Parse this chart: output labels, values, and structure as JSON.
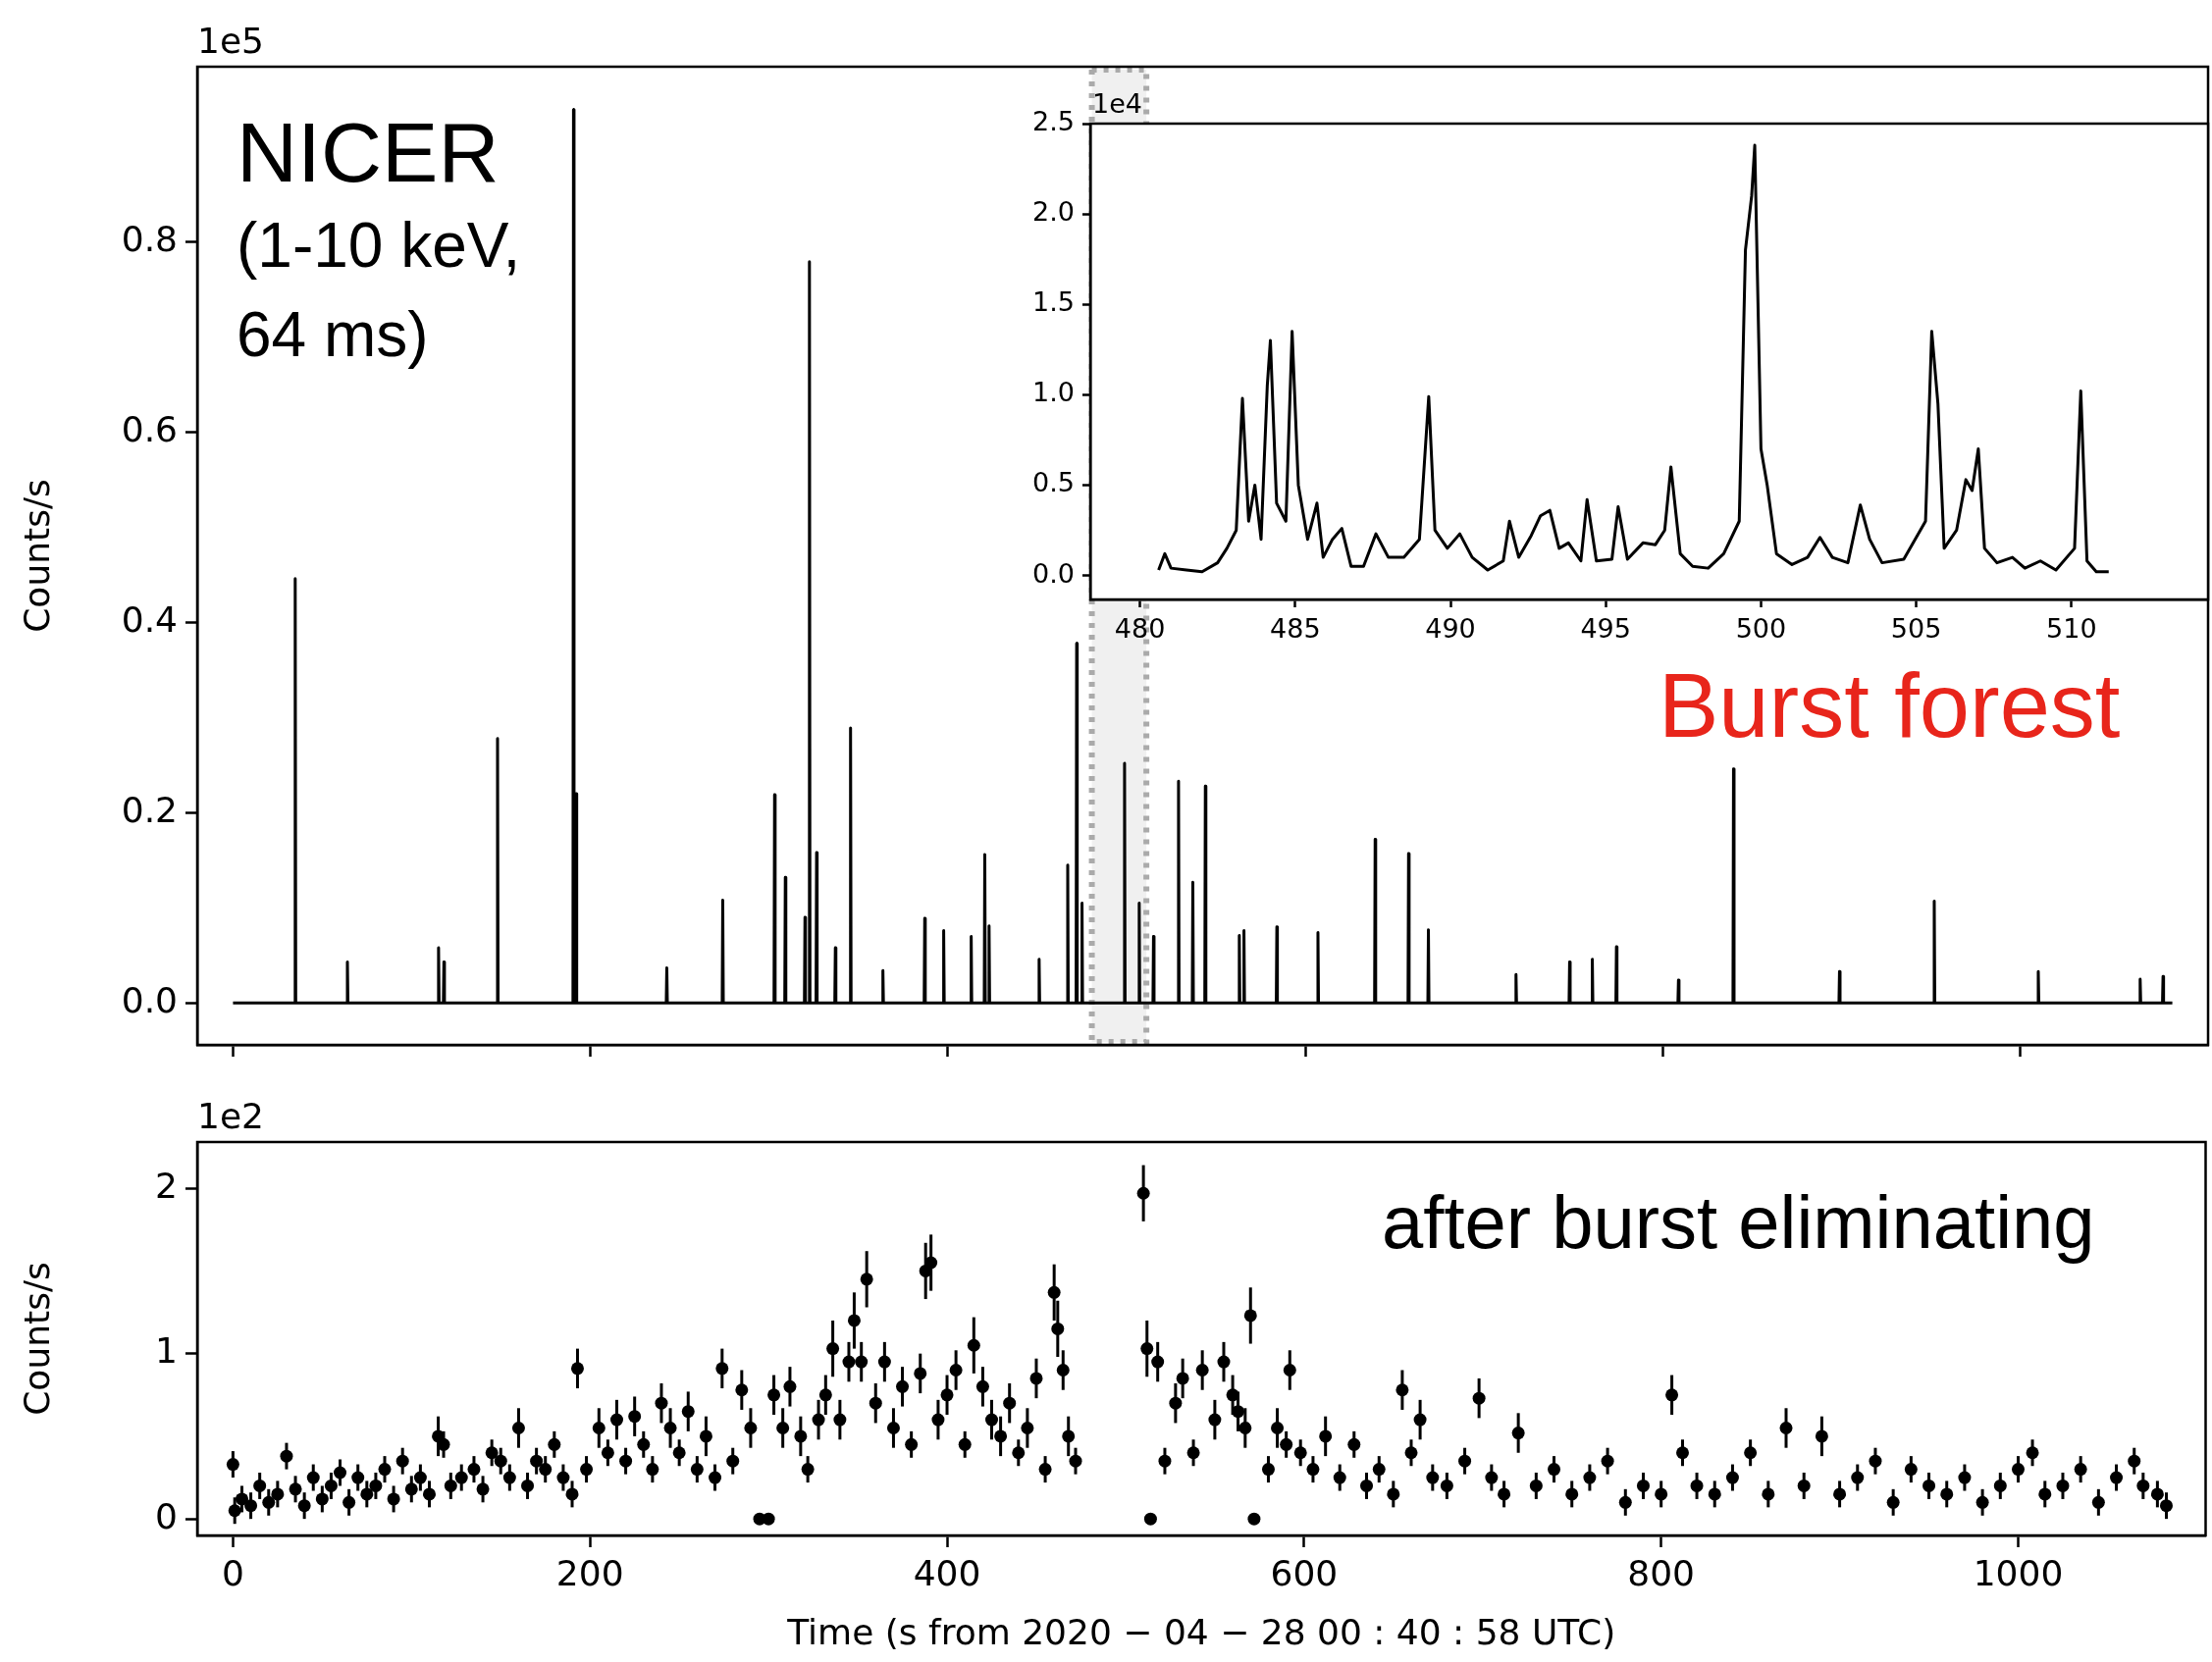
{
  "chart_data": [
    {
      "type": "line",
      "ylabel": "Counts/s",
      "annotations": [
        "1e5",
        "NICER",
        "(1-10 keV, 64 ms)",
        "Burst forest"
      ],
      "x": [
        0,
        34.5,
        34.8,
        35.1,
        63.7,
        64,
        64.3,
        114.7,
        115,
        115.3,
        117.7,
        118,
        118.3,
        147.7,
        148,
        148.3,
        190.2,
        190.5,
        190.8,
        191.7,
        192,
        192.3,
        242.4,
        242.7,
        243,
        273.7,
        274,
        274.3,
        302.7,
        303,
        303.3,
        308.7,
        309,
        309.3,
        319.7,
        320,
        320.3,
        322.2,
        322.5,
        322.8,
        326.2,
        326.5,
        326.8,
        336.7,
        337,
        337.3,
        345.2,
        345.5,
        345.8,
        363.3,
        363.6,
        363.9,
        386.7,
        387,
        387.3,
        397.3,
        397.6,
        397.9,
        412.7,
        413,
        413.3,
        420.3,
        420.6,
        420.9,
        422.7,
        423,
        423.3,
        450.7,
        451,
        451.3,
        466.7,
        467,
        467.3,
        471.7,
        472,
        472.3,
        474.7,
        475,
        475.3,
        498.5,
        498.8,
        499.1,
        506.7,
        507,
        507.3,
        514.7,
        515,
        515.3,
        528.7,
        529,
        529.3,
        536.7,
        537,
        537.3,
        543.7,
        544,
        544.3,
        562.7,
        563,
        563.3,
        565.3,
        565.6,
        565.9,
        583.7,
        584,
        584.3,
        606.7,
        607,
        607.3,
        638.7,
        639,
        639.3,
        657.4,
        657.7,
        658,
        668.5,
        668.8,
        669.1,
        717.5,
        717.8,
        718.1,
        747.5,
        747.8,
        748.1,
        760.2,
        760.5,
        760.8,
        773.7,
        774,
        774.3,
        808.4,
        808.7,
        809,
        839.2,
        839.5,
        839.8,
        898.5,
        898.8,
        899.1,
        951.5,
        951.8,
        952.1,
        1009.7,
        1010,
        1010.3,
        1066.7,
        1067,
        1067.3,
        1079.5,
        1079.8,
        1080.1,
        1085
      ],
      "values": [
        0,
        0,
        0.446,
        0,
        0,
        0.043,
        0,
        0,
        0.058,
        0,
        0,
        0.043,
        0,
        0,
        0.278,
        0,
        0,
        0.939,
        0,
        0,
        0.22,
        0,
        0,
        0.037,
        0,
        0,
        0.108,
        0,
        0,
        0.219,
        0,
        0,
        0.132,
        0,
        0,
        0.09,
        0,
        0,
        0.779,
        0,
        0,
        0.158,
        0,
        0,
        0.058,
        0,
        0,
        0.289,
        0,
        0,
        0.034,
        0,
        0,
        0.089,
        0,
        0,
        0.076,
        0,
        0,
        0.07,
        0,
        0,
        0.156,
        0,
        0,
        0.081,
        0,
        0,
        0.046,
        0,
        0,
        0.145,
        0,
        0,
        0.378,
        0,
        0,
        0.105,
        0,
        0,
        0.252,
        0,
        0,
        0.105,
        0,
        0,
        0.07,
        0,
        0,
        0.233,
        0,
        0,
        0.127,
        0,
        0,
        0.228,
        0,
        0,
        0.071,
        0,
        0,
        0.076,
        0,
        0,
        0.08,
        0,
        0,
        0.074,
        0,
        0,
        0.172,
        0,
        0,
        0.157,
        0,
        0,
        0.077,
        0,
        0,
        0.03,
        0,
        0,
        0.043,
        0,
        0,
        0.046,
        0,
        0,
        0.059,
        0,
        0,
        0.024,
        0,
        0,
        0.246,
        0,
        0,
        0.033,
        0,
        0,
        0.107,
        0,
        0,
        0.033,
        0,
        0,
        0.025,
        0,
        0,
        0.028,
        0,
        0
      ],
      "color": "#000000",
      "marker": "none",
      "line_style": "solid",
      "xlim": [
        -20,
        1105
      ],
      "xticks": [
        0,
        200,
        400,
        600,
        800,
        1000
      ],
      "ylim": [
        -0.044,
        0.984
      ],
      "yticks": [
        {
          "value": 0,
          "label": "0.0"
        },
        0.2,
        0.4,
        0.6,
        0.8
      ],
      "tick_labels": "y",
      "bands": [
        {
          "axis": "x",
          "from": 480.5,
          "to": 511,
          "color": "#aaaaaa"
        }
      ]
    },
    {
      "type": "line",
      "annotations": [
        "1e4"
      ],
      "x": [
        480.6,
        480.8,
        481,
        481.5,
        482,
        482.5,
        482.8,
        483.1,
        483.3,
        483.5,
        483.7,
        483.9,
        484.1,
        484.2,
        484.4,
        484.7,
        484.9,
        485.1,
        485.4,
        485.7,
        485.9,
        486.2,
        486.5,
        486.8,
        487.2,
        487.6,
        488,
        488.5,
        489,
        489.3,
        489.5,
        489.9,
        490.3,
        490.7,
        491.2,
        491.7,
        491.9,
        492.2,
        492.6,
        492.9,
        493.2,
        493.5,
        493.8,
        494.2,
        494.4,
        494.7,
        495.2,
        495.4,
        495.7,
        496.2,
        496.6,
        496.9,
        497.1,
        497.4,
        497.8,
        498.3,
        498.8,
        499.3,
        499.5,
        499.7,
        499.8,
        500,
        500.2,
        500.5,
        501,
        501.5,
        501.9,
        502.3,
        502.8,
        503.2,
        503.5,
        503.9,
        504.6,
        505.3,
        505.5,
        505.7,
        505.9,
        506.3,
        506.6,
        506.8,
        507,
        507.2,
        507.6,
        508.1,
        508.5,
        509,
        509.5,
        510.1,
        510.3,
        510.5,
        510.8,
        511.2
      ],
      "values": [
        0.03,
        0.12,
        0.04,
        0.03,
        0.02,
        0.07,
        0.15,
        0.25,
        0.98,
        0.3,
        0.5,
        0.2,
        1.05,
        1.3,
        0.4,
        0.3,
        1.35,
        0.5,
        0.2,
        0.4,
        0.1,
        0.2,
        0.26,
        0.05,
        0.05,
        0.23,
        0.1,
        0.1,
        0.2,
        0.99,
        0.25,
        0.15,
        0.23,
        0.1,
        0.03,
        0.08,
        0.3,
        0.1,
        0.22,
        0.33,
        0.36,
        0.15,
        0.18,
        0.08,
        0.42,
        0.08,
        0.09,
        0.38,
        0.09,
        0.18,
        0.17,
        0.25,
        0.6,
        0.12,
        0.05,
        0.04,
        0.12,
        0.3,
        1.8,
        2.1,
        2.38,
        0.7,
        0.5,
        0.12,
        0.06,
        0.1,
        0.21,
        0.1,
        0.07,
        0.39,
        0.2,
        0.07,
        0.09,
        0.3,
        1.35,
        0.95,
        0.15,
        0.25,
        0.53,
        0.47,
        0.7,
        0.15,
        0.07,
        0.1,
        0.04,
        0.08,
        0.03,
        0.15,
        1.02,
        0.08,
        0.02,
        0.02
      ],
      "color": "#000000",
      "marker": "none",
      "line_style": "solid",
      "xlim": [
        478.4,
        514.4
      ],
      "xticks": [
        480,
        485,
        490,
        495,
        500,
        505,
        510
      ],
      "ylim": [
        -0.133,
        2.5
      ],
      "yticks": [
        {
          "value": 0,
          "label": "0.0"
        },
        0.5,
        {
          "value": 1,
          "label": "1.0"
        },
        1.5,
        {
          "value": 2,
          "label": "2.0"
        },
        2.5
      ]
    },
    {
      "type": "scatter",
      "xlabel": "Time (s from 2020 − 04 − 28 00 : 40 : 58 UTC)",
      "ylabel": "Counts/s",
      "annotations": [
        "1e2",
        "after burst eliminating"
      ],
      "x": [
        0,
        1,
        5,
        10,
        15,
        20,
        25,
        30,
        35,
        40,
        45,
        50,
        55,
        60,
        65,
        70,
        75,
        80,
        85,
        90,
        95,
        100,
        105,
        110,
        115,
        118,
        122,
        128,
        135,
        140,
        145,
        150,
        155,
        160,
        165,
        170,
        175,
        180,
        185,
        190,
        193,
        198,
        205,
        210,
        215,
        220,
        225,
        230,
        235,
        240,
        245,
        250,
        255,
        260,
        265,
        270,
        274,
        280,
        285,
        290,
        295,
        300,
        303,
        308,
        312,
        318,
        322,
        328,
        332,
        336,
        340,
        345,
        348,
        352,
        355,
        360,
        365,
        370,
        375,
        380,
        385,
        388,
        391,
        395,
        400,
        405,
        410,
        415,
        420,
        425,
        430,
        435,
        440,
        445,
        450,
        455,
        460,
        462,
        465,
        468,
        472,
        510,
        512,
        514,
        518,
        522,
        528,
        532,
        538,
        543,
        550,
        555,
        560,
        563,
        567,
        570,
        572,
        580,
        585,
        590,
        592,
        598,
        605,
        612,
        620,
        628,
        635,
        642,
        650,
        655,
        660,
        665,
        672,
        680,
        690,
        698,
        705,
        712,
        720,
        730,
        740,
        750,
        760,
        770,
        780,
        790,
        800,
        806,
        812,
        820,
        830,
        840,
        850,
        860,
        870,
        880,
        890,
        900,
        910,
        920,
        930,
        940,
        950,
        960,
        970,
        980,
        990,
        1000,
        1008,
        1015,
        1025,
        1035,
        1045,
        1055,
        1065,
        1070,
        1078,
        1083
      ],
      "values": [
        0.33,
        0.05,
        0.12,
        0.08,
        0.2,
        0.1,
        0.15,
        0.38,
        0.18,
        0.08,
        0.25,
        0.12,
        0.2,
        0.28,
        0.1,
        0.25,
        0.15,
        0.2,
        0.3,
        0.12,
        0.35,
        0.18,
        0.25,
        0.15,
        0.5,
        0.45,
        0.2,
        0.25,
        0.3,
        0.18,
        0.4,
        0.35,
        0.25,
        0.55,
        0.2,
        0.35,
        0.3,
        0.45,
        0.25,
        0.15,
        0.91,
        0.3,
        0.55,
        0.4,
        0.6,
        0.35,
        0.62,
        0.45,
        0.3,
        0.7,
        0.55,
        0.4,
        0.65,
        0.3,
        0.5,
        0.25,
        0.91,
        0.35,
        0.78,
        0.55,
        0,
        0,
        0.75,
        0.55,
        0.8,
        0.5,
        0.3,
        0.6,
        0.75,
        1.03,
        0.6,
        0.95,
        1.2,
        0.95,
        1.45,
        0.7,
        0.95,
        0.55,
        0.8,
        0.45,
        0.88,
        1.5,
        1.55,
        0.6,
        0.75,
        0.9,
        0.45,
        1.05,
        0.8,
        0.6,
        0.5,
        0.7,
        0.4,
        0.55,
        0.85,
        0.3,
        1.37,
        1.15,
        0.9,
        0.5,
        0.35,
        1.97,
        1.03,
        0,
        0.95,
        0.35,
        0.7,
        0.85,
        0.4,
        0.9,
        0.6,
        0.95,
        0.75,
        0.65,
        0.55,
        1.23,
        0,
        0.3,
        0.55,
        0.45,
        0.9,
        0.4,
        0.3,
        0.5,
        0.25,
        0.45,
        0.2,
        0.3,
        0.15,
        0.78,
        0.4,
        0.6,
        0.25,
        0.2,
        0.35,
        0.73,
        0.25,
        0.15,
        0.52,
        0.2,
        0.3,
        0.15,
        0.25,
        0.35,
        0.1,
        0.2,
        0.15,
        0.75,
        0.4,
        0.2,
        0.15,
        0.25,
        0.4,
        0.15,
        0.55,
        0.2,
        0.5,
        0.15,
        0.25,
        0.35,
        0.1,
        0.3,
        0.2,
        0.15,
        0.25,
        0.1,
        0.2,
        0.3,
        0.4,
        0.15,
        0.2,
        0.3,
        0.1,
        0.25,
        0.35,
        0.2,
        0.15,
        0.08
      ],
      "errors": [
        0.08,
        0.08,
        0.08,
        0.08,
        0.08,
        0.08,
        0.08,
        0.08,
        0.08,
        0.08,
        0.08,
        0.08,
        0.08,
        0.08,
        0.08,
        0.08,
        0.08,
        0.08,
        0.08,
        0.08,
        0.08,
        0.08,
        0.08,
        0.08,
        0.12,
        0.08,
        0.08,
        0.08,
        0.08,
        0.08,
        0.08,
        0.08,
        0.08,
        0.12,
        0.08,
        0.08,
        0.08,
        0.08,
        0.08,
        0.08,
        0.12,
        0.08,
        0.12,
        0.08,
        0.12,
        0.08,
        0.12,
        0.08,
        0.08,
        0.12,
        0.12,
        0.08,
        0.12,
        0.08,
        0.12,
        0.08,
        0.12,
        0.08,
        0.12,
        0.12,
        0.03,
        0.03,
        0.12,
        0.12,
        0.12,
        0.12,
        0.08,
        0.12,
        0.12,
        0.17,
        0.12,
        0.12,
        0.17,
        0.12,
        0.17,
        0.12,
        0.12,
        0.12,
        0.12,
        0.08,
        0.12,
        0.17,
        0.17,
        0.12,
        0.12,
        0.12,
        0.08,
        0.17,
        0.12,
        0.12,
        0.12,
        0.12,
        0.08,
        0.12,
        0.12,
        0.08,
        0.17,
        0.17,
        0.12,
        0.12,
        0.08,
        0.17,
        0.17,
        0.03,
        0.12,
        0.08,
        0.12,
        0.12,
        0.08,
        0.12,
        0.12,
        0.12,
        0.12,
        0.12,
        0.12,
        0.17,
        0.03,
        0.08,
        0.12,
        0.08,
        0.12,
        0.08,
        0.08,
        0.12,
        0.08,
        0.08,
        0.08,
        0.08,
        0.08,
        0.12,
        0.08,
        0.12,
        0.08,
        0.08,
        0.08,
        0.12,
        0.08,
        0.08,
        0.12,
        0.08,
        0.08,
        0.08,
        0.08,
        0.08,
        0.08,
        0.08,
        0.08,
        0.12,
        0.08,
        0.08,
        0.08,
        0.08,
        0.08,
        0.08,
        0.12,
        0.08,
        0.12,
        0.08,
        0.08,
        0.08,
        0.08,
        0.08,
        0.08,
        0.08,
        0.08,
        0.08,
        0.08,
        0.08,
        0.08,
        0.08,
        0.08,
        0.08,
        0.08,
        0.08,
        0.08,
        0.08,
        0.08,
        0.08
      ],
      "color": "#000000",
      "marker": "circle",
      "xlim": [
        -20,
        1105
      ],
      "xticks": [
        0,
        200,
        400,
        600,
        800,
        1000
      ],
      "ylim": [
        -0.1,
        2.28
      ],
      "yticks": [
        0,
        1,
        2
      ]
    }
  ]
}
